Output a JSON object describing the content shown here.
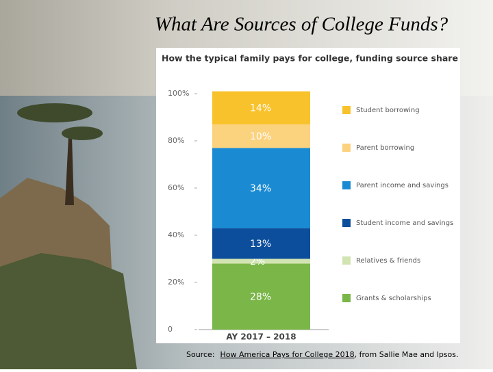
{
  "chart_data": {
    "type": "stacked-bar",
    "slide_title": "What Are Sources of College Funds?",
    "title": "How the typical family pays for college, funding source share",
    "categories": [
      "AY 2017 – 2018"
    ],
    "series": [
      {
        "name": "Grants & scholarships",
        "color": "#7ab648",
        "values": [
          28
        ],
        "value_labels": [
          "28%"
        ]
      },
      {
        "name": "Relatives & friends",
        "color": "#d3e4b3",
        "values": [
          2
        ],
        "value_labels": [
          "2%"
        ]
      },
      {
        "name": "Student income and savings",
        "color": "#0c4e9b",
        "values": [
          13
        ],
        "value_labels": [
          "13%"
        ]
      },
      {
        "name": "Parent income and savings",
        "color": "#1a8bd2",
        "values": [
          34
        ],
        "value_labels": [
          "34%"
        ]
      },
      {
        "name": "Parent borrowing",
        "color": "#fbd27e",
        "values": [
          10
        ],
        "value_labels": [
          "10%"
        ]
      },
      {
        "name": "Student borrowing",
        "color": "#f8c22c",
        "values": [
          14
        ],
        "value_labels": [
          "14%"
        ]
      }
    ],
    "ylim": [
      0,
      100
    ],
    "yticks": [
      0,
      {
        "value": 20,
        "label": "20%"
      },
      {
        "value": 40,
        "label": "40%"
      },
      {
        "value": 60,
        "label": "60%"
      },
      {
        "value": 80,
        "label": "80%"
      },
      {
        "value": 100,
        "label": "100%"
      }
    ],
    "legend": "right",
    "source": {
      "prefix": "Source:",
      "link": "How America Pays for College 2018",
      "suffix": ", from Sallie Mae and Ipsos."
    }
  }
}
